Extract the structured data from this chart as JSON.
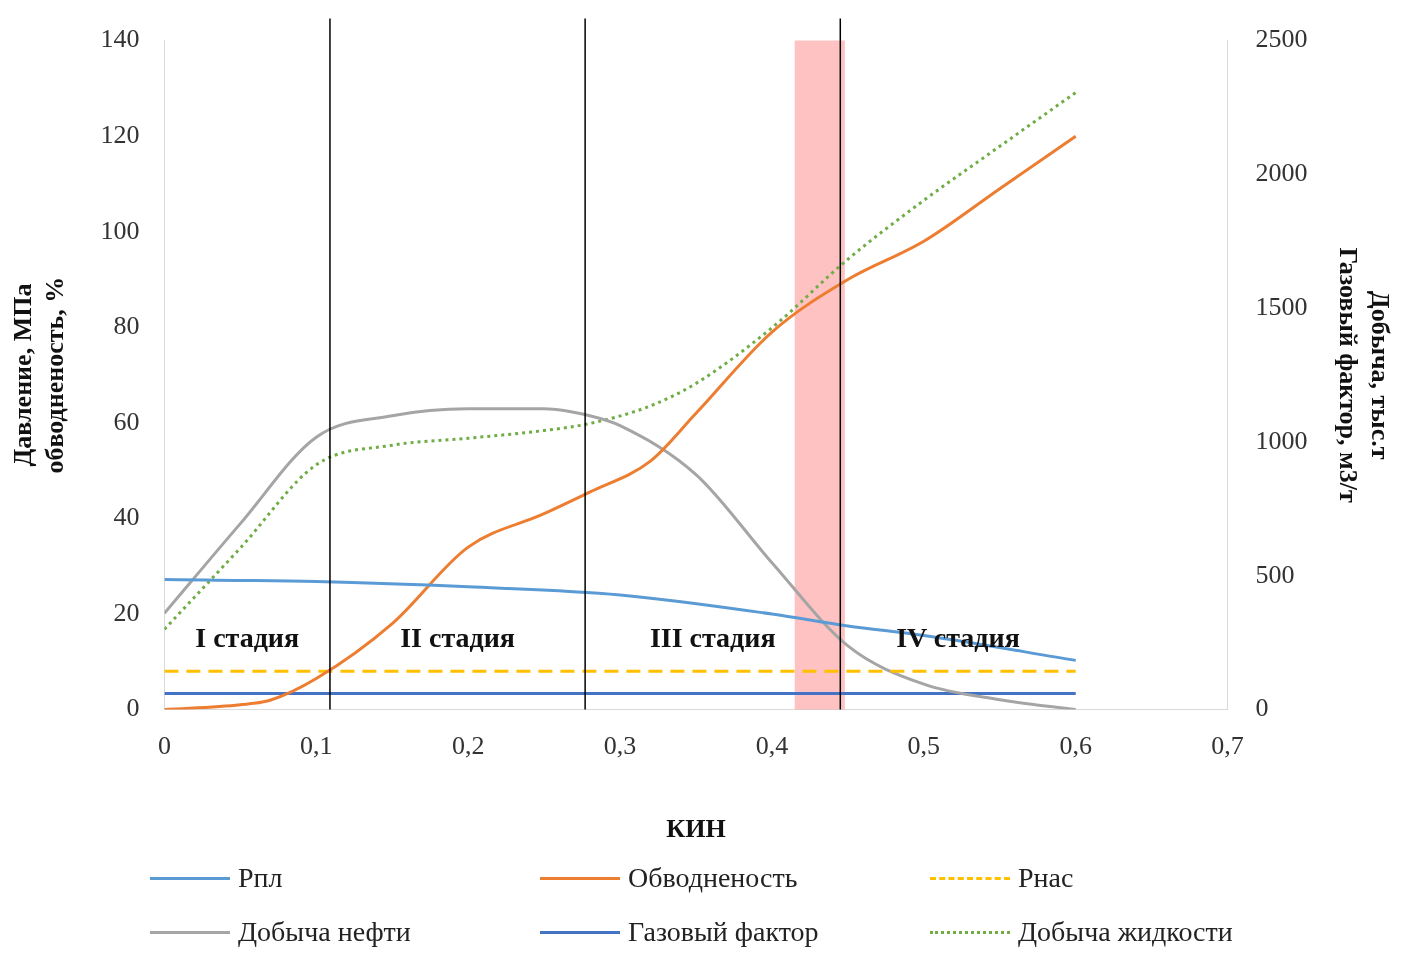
{
  "chart_data": {
    "type": "line",
    "xlabel": "КИН",
    "ylabel": "Давление, МПа\nобводненость, %",
    "y2label": "Добыча, тыс.т\nГазовый фактор, м3/т",
    "xlim": [
      0,
      0.7
    ],
    "xticks": [
      0,
      {
        "value": 0.1,
        "label": "0,1"
      },
      {
        "value": 0.2,
        "label": "0,2"
      },
      {
        "value": 0.3,
        "label": "0,3"
      },
      {
        "value": 0.4,
        "label": "0,4"
      },
      {
        "value": 0.5,
        "label": "0,5"
      },
      {
        "value": 0.6,
        "label": "0,6"
      },
      {
        "value": 0.7,
        "label": "0,7"
      }
    ],
    "ylim": [
      0,
      140
    ],
    "yticks": [
      0,
      20,
      40,
      60,
      80,
      100,
      120,
      140
    ],
    "y2lim": [
      0,
      2500
    ],
    "y2ticks": [
      0,
      500,
      1000,
      1500,
      2000,
      2500
    ],
    "series": [
      {
        "name": "Рпл",
        "color": "#5b9bd5",
        "x": [
          0,
          0.1,
          0.2,
          0.3,
          0.4,
          0.45,
          0.5,
          0.6
        ],
        "values": [
          27.2,
          26.8,
          25.7,
          24,
          20,
          17.5,
          15.5,
          10.3
        ]
      },
      {
        "name": "Обводненость",
        "color": "#ed7d31",
        "x": [
          0,
          0.05,
          0.07,
          0.1,
          0.15,
          0.2,
          0.25,
          0.28,
          0.32,
          0.35,
          0.4,
          0.45,
          0.5,
          0.55,
          0.6
        ],
        "values": [
          0,
          1,
          2,
          6.5,
          18,
          34,
          41,
          45.5,
          52,
          62,
          79,
          90,
          98,
          109,
          120
        ]
      },
      {
        "name": "Рнас",
        "color": "#ffc000",
        "line_style": "dashed",
        "x": [
          0,
          0.6
        ],
        "values": [
          8,
          8
        ]
      },
      {
        "name": "Добыча нефти",
        "color": "#a5a5a5",
        "axis": "y2",
        "x": [
          0,
          0.05,
          0.1,
          0.15,
          0.2,
          0.25,
          0.28,
          0.3,
          0.35,
          0.4,
          0.45,
          0.5,
          0.55,
          0.6
        ],
        "values": [
          360,
          695,
          1018,
          1098,
          1124,
          1124,
          1098,
          1061,
          878,
          549,
          238,
          95,
          37,
          0
        ]
      },
      {
        "name": "Газовый фактор",
        "color": "#4472c4",
        "axis": "y2",
        "x": [
          0,
          0.6
        ],
        "values": [
          60,
          60
        ]
      },
      {
        "name": "Добыча жидкости",
        "color": "#70ad47",
        "axis": "y2",
        "line_style": "dotted",
        "x": [
          0,
          0.05,
          0.1,
          0.15,
          0.2,
          0.25,
          0.28,
          0.32,
          0.35,
          0.4,
          0.45,
          0.5,
          0.55,
          0.6
        ],
        "values": [
          300,
          604,
          915,
          988,
          1014,
          1043,
          1069,
          1135,
          1219,
          1427,
          1683,
          1903,
          2105,
          2306
        ]
      }
    ],
    "ref_lines": [
      {
        "axis": "x",
        "value": 0.109,
        "color": "#000000"
      },
      {
        "axis": "x",
        "value": 0.277,
        "color": "#000000"
      },
      {
        "axis": "x",
        "value": 0.445,
        "color": "#000000"
      }
    ],
    "bands": [
      {
        "axis": "x",
        "from": 0.415,
        "to": 0.448,
        "color": "#ff9999"
      }
    ],
    "annotations": [
      "I стадия",
      "II стадия",
      "III стадия",
      "IV стадия"
    ],
    "grid": false,
    "legend": "bottom",
    "marker": "none"
  }
}
